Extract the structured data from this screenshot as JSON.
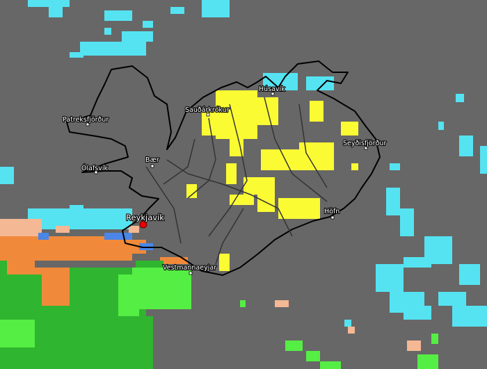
{
  "places": [
    {
      "name": "Húsavík"
    },
    {
      "name": "Sauðárkrókur"
    },
    {
      "name": "Patreksfjörður"
    },
    {
      "name": "Seyðisfjörður"
    },
    {
      "name": "Ólafsvík"
    },
    {
      "name": "Bær"
    },
    {
      "name": "Reykjavík"
    },
    {
      "name": "Höfn"
    },
    {
      "name": "Vestmannaeyjar"
    }
  ]
}
